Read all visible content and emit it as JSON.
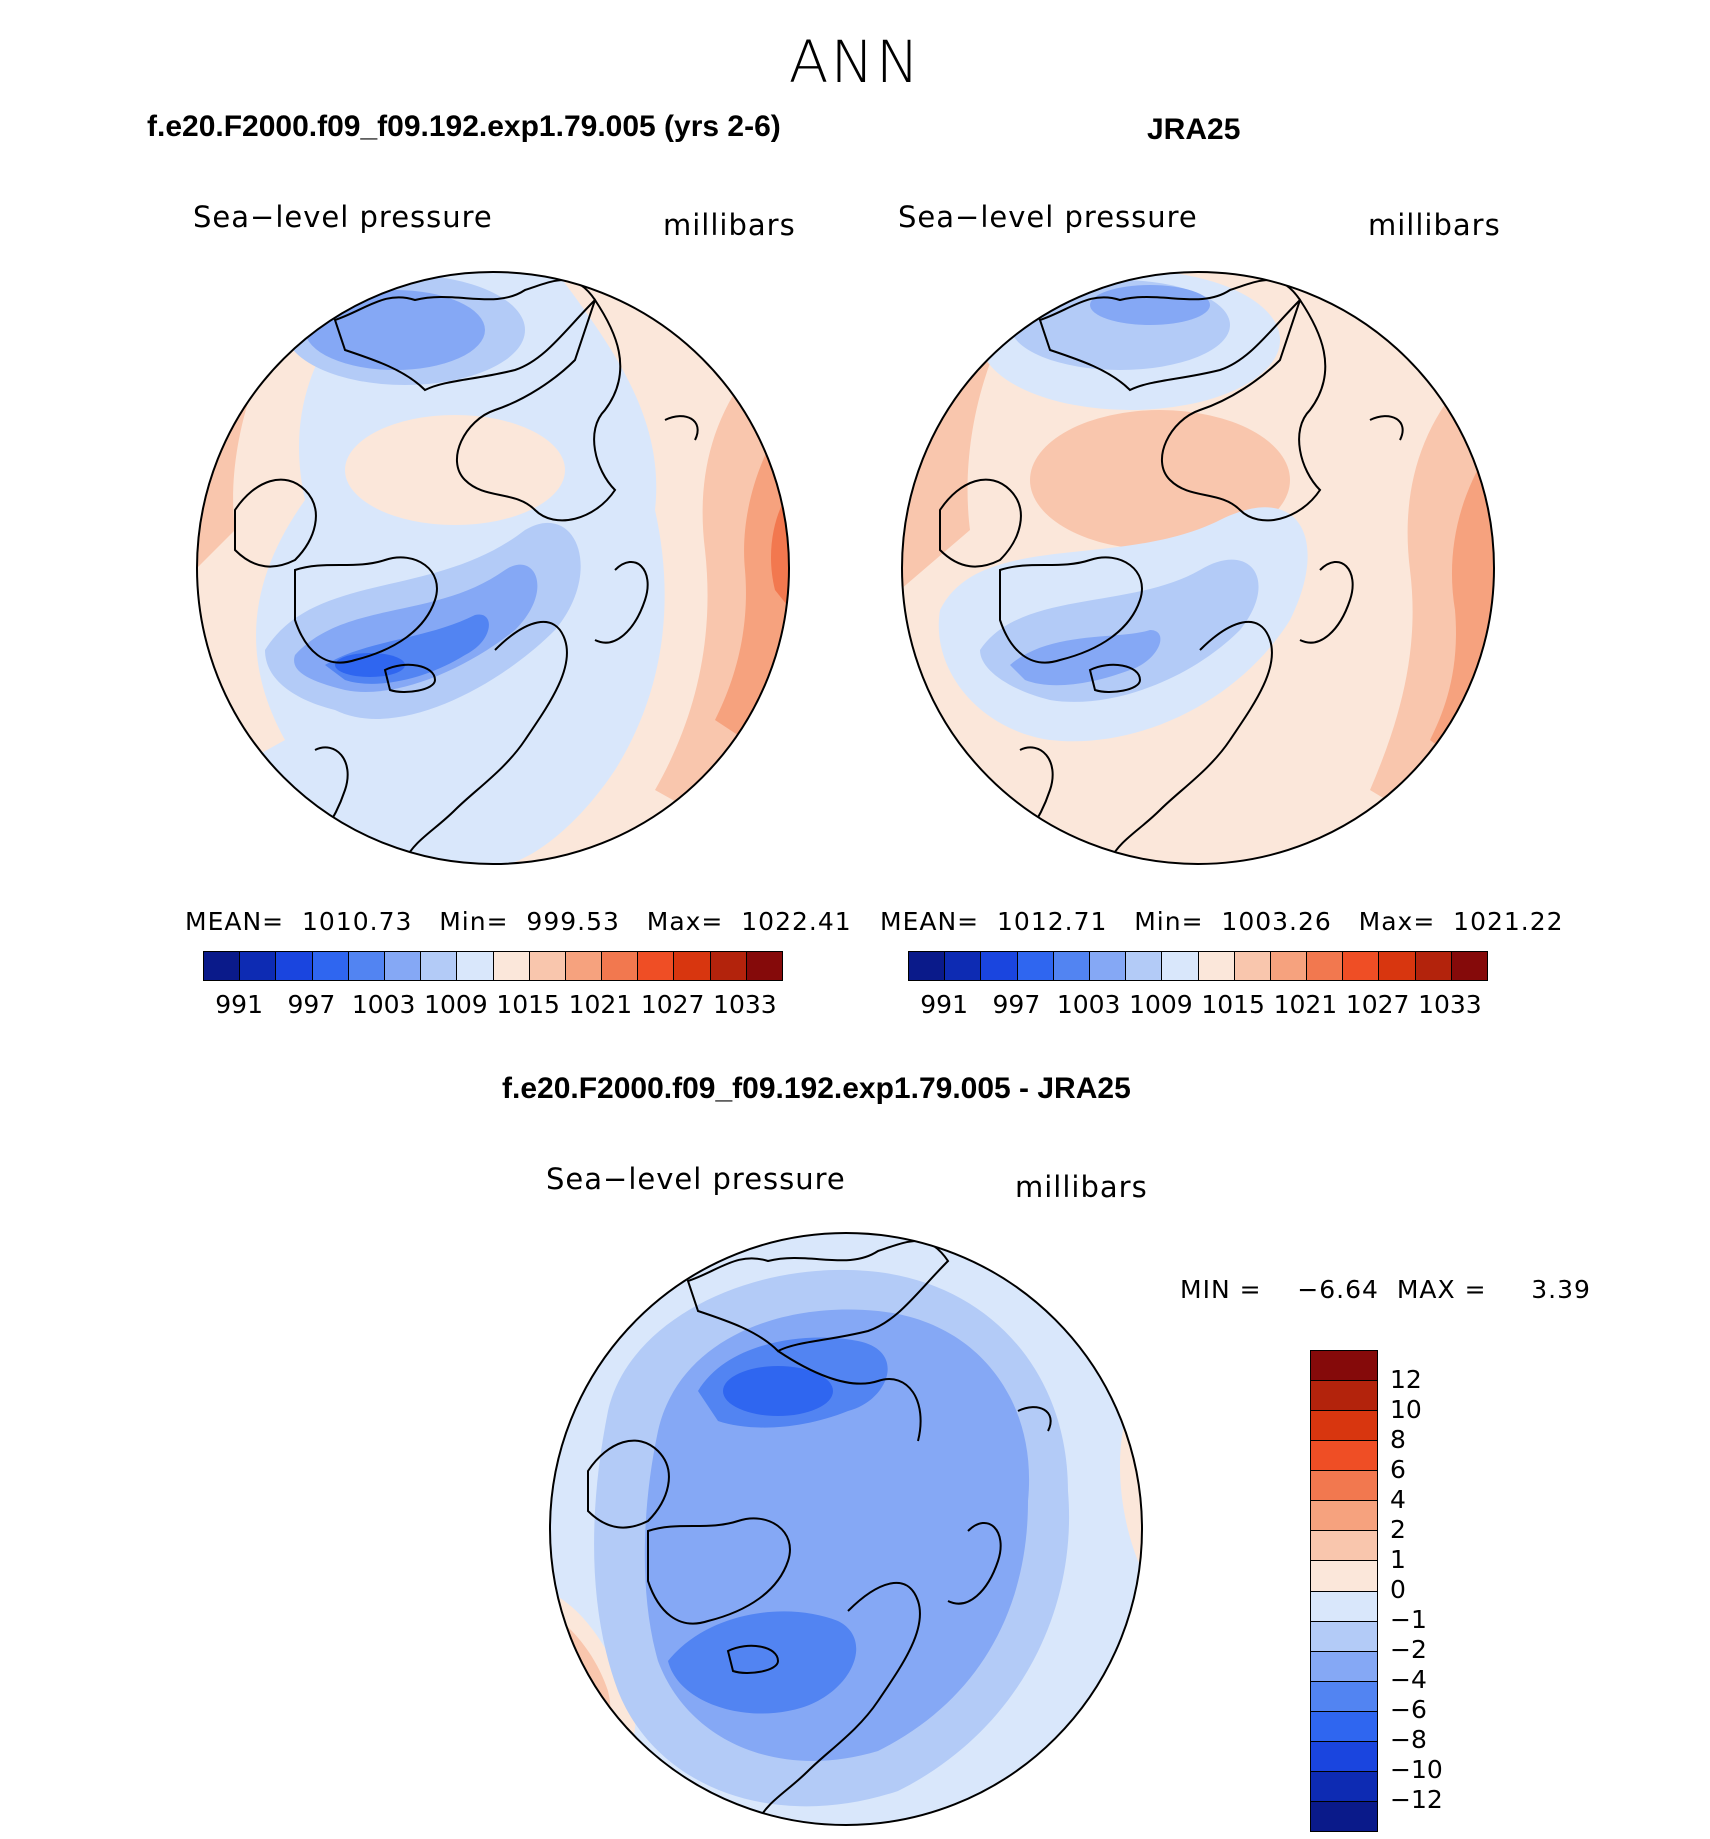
{
  "page": {
    "suptitle": "ANN"
  },
  "colors": {
    "abs_palette": [
      "#0a1a8a",
      "#0d2bb3",
      "#1a45df",
      "#2f66f0",
      "#5284f2",
      "#85a8f5",
      "#b3cbf7",
      "#d9e7fb",
      "#fbe7da",
      "#f9c6ad",
      "#f6a27e",
      "#f2784f",
      "#ef4e25",
      "#d8360f",
      "#b3230c",
      "#850a0a"
    ],
    "diff_palette": [
      "#850a0a",
      "#b3230c",
      "#d8360f",
      "#ef4e25",
      "#f2784f",
      "#f6a27e",
      "#f9c6ad",
      "#fbe7da",
      "#d9e7fb",
      "#b3cbf7",
      "#85a8f5",
      "#5284f2",
      "#2f66f0",
      "#1a45df",
      "#0d2bb3",
      "#0a1a8a"
    ]
  },
  "chart_data": [
    {
      "type": "heatmap",
      "projection": "north-polar-stereographic",
      "panel_title": "f.e20.F2000.f09_f09.192.exp1.79.005 (yrs 2-6)",
      "left_label": "Sea−level pressure",
      "right_label": "millibars",
      "stats_text": "MEAN=  1010.73   Min=  999.53   Max=  1022.41",
      "mean": 1010.73,
      "min": 999.53,
      "max": 1022.41,
      "colorbar_ticks": [
        "991",
        "997",
        "1003",
        "1009",
        "1015",
        "1021",
        "1027",
        "1033"
      ],
      "colorbar_orientation": "horizontal"
    },
    {
      "type": "heatmap",
      "projection": "north-polar-stereographic",
      "panel_title": "JRA25",
      "left_label": "Sea−level pressure",
      "right_label": "millibars",
      "stats_text": "MEAN=  1012.71   Min=  1003.26   Max=  1021.22",
      "mean": 1012.71,
      "min": 1003.26,
      "max": 1021.22,
      "colorbar_ticks": [
        "991",
        "997",
        "1003",
        "1009",
        "1015",
        "1021",
        "1027",
        "1033"
      ],
      "colorbar_orientation": "horizontal"
    },
    {
      "type": "heatmap",
      "projection": "north-polar-stereographic",
      "panel_title": "f.e20.F2000.f09_f09.192.exp1.79.005 - JRA25",
      "left_label": "Sea−level pressure",
      "right_label": "millibars",
      "stats_text": "MIN =    −6.64  MAX =     3.39",
      "min": -6.64,
      "max": 3.39,
      "colorbar_ticks": [
        "12",
        "10",
        "8",
        "6",
        "4",
        "2",
        "1",
        "0",
        "−1",
        "−2",
        "−4",
        "−6",
        "−8",
        "−10",
        "−12"
      ],
      "colorbar_orientation": "vertical"
    }
  ]
}
